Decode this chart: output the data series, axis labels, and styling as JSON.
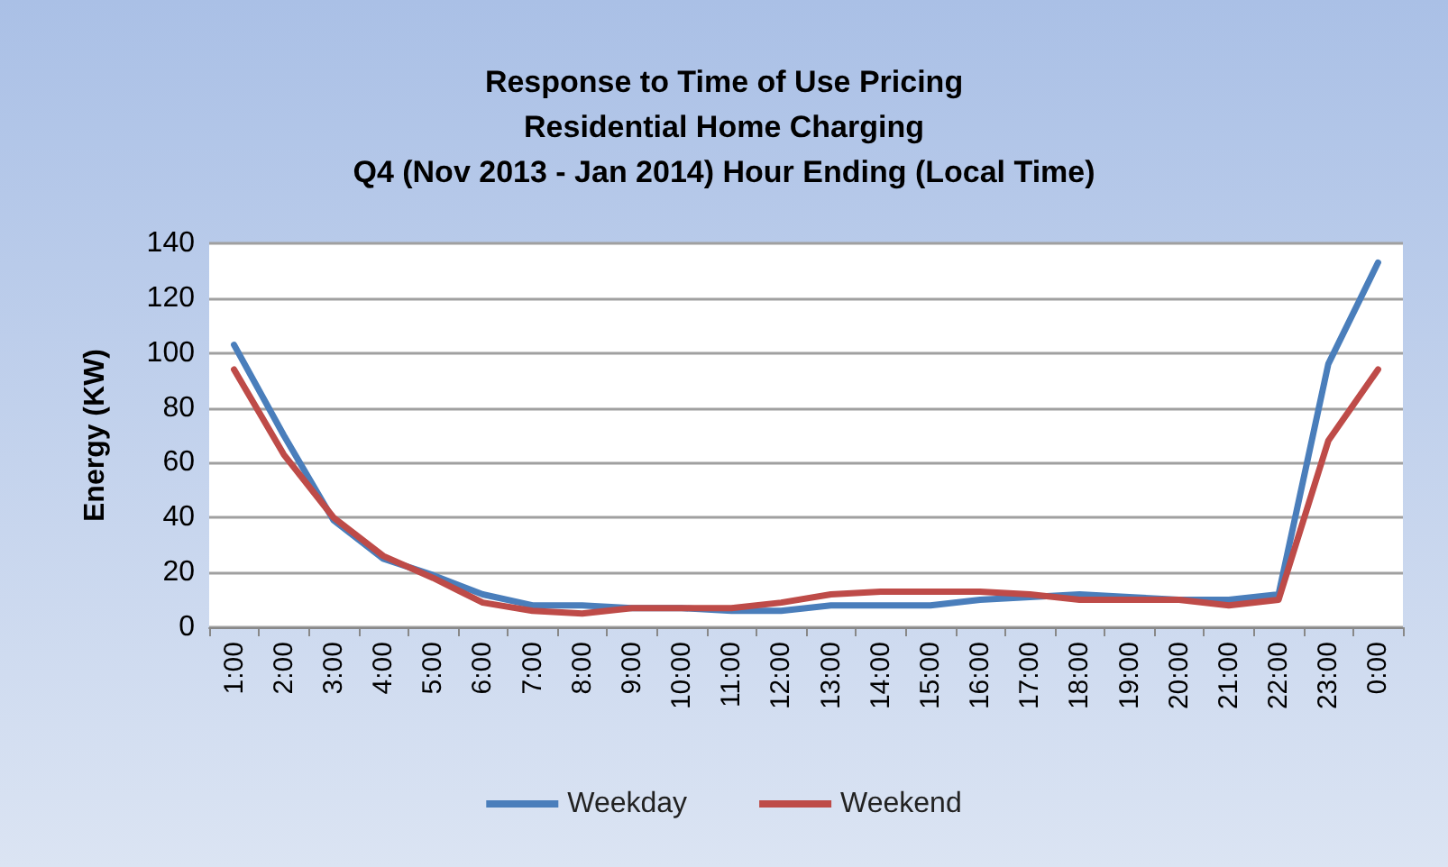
{
  "chart_data": {
    "type": "line",
    "title": "Response to Time of Use Pricing\nResidential Home Charging\nQ4 (Nov 2013 - Jan 2014) Hour Ending (Local Time)",
    "ylabel": "Energy (KW)",
    "categories": [
      "1:00",
      "2:00",
      "3:00",
      "4:00",
      "5:00",
      "6:00",
      "7:00",
      "8:00",
      "9:00",
      "10:00",
      "11:00",
      "12:00",
      "13:00",
      "14:00",
      "15:00",
      "16:00",
      "17:00",
      "18:00",
      "19:00",
      "20:00",
      "21:00",
      "22:00",
      "23:00",
      "0:00"
    ],
    "series": [
      {
        "name": "Weekday",
        "color": "#4a7ebb",
        "values": [
          103,
          70,
          39,
          25,
          19,
          12,
          8,
          8,
          7,
          7,
          6,
          6,
          8,
          8,
          8,
          10,
          11,
          12,
          11,
          10,
          10,
          12,
          96,
          133
        ]
      },
      {
        "name": "Weekend",
        "color": "#be4b48",
        "values": [
          94,
          63,
          40,
          26,
          18,
          9,
          6,
          5,
          7,
          7,
          7,
          9,
          12,
          13,
          13,
          13,
          12,
          10,
          10,
          10,
          8,
          10,
          68,
          94
        ]
      }
    ],
    "ylim": [
      0,
      140
    ],
    "yticks": [
      0,
      20,
      40,
      60,
      80,
      100,
      120,
      140
    ],
    "grid": "y",
    "legend": "bottom",
    "marker": "none",
    "line_style": "solid"
  }
}
